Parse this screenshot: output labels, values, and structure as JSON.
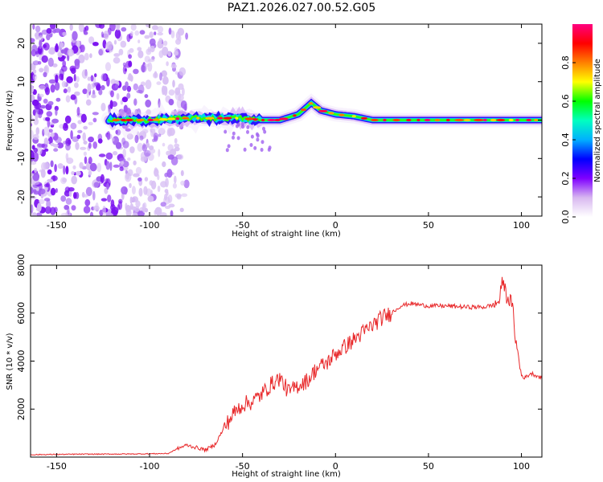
{
  "figure_title": "PAZ1.2026.027.00.52.G05",
  "chart_data": [
    {
      "type": "heatmap",
      "panel": "spectrogram",
      "xlabel": "Height of straight line (km)",
      "ylabel": "Frequency (Hz)",
      "xlim": [
        -164,
        111
      ],
      "ylim": [
        -25,
        25
      ],
      "xticks": [
        -150,
        -100,
        -50,
        0,
        50,
        100
      ],
      "yticks": [
        -20,
        -10,
        0,
        10,
        20
      ],
      "colorbar": {
        "label": "Normalized spectral amplitude",
        "range": [
          0,
          1
        ],
        "ticks": [
          "0.0",
          "0.2",
          "0.4",
          "0.6",
          "0.8"
        ],
        "colormap": [
          "#ffffff",
          "#d8b8f0",
          "#7f00ff",
          "#0000ff",
          "#00b0ff",
          "#00ffc0",
          "#00ff00",
          "#ffff00",
          "#ff8000",
          "#ff0000",
          "#ff0080"
        ]
      },
      "ridge": {
        "description_points_km_hz": [
          [
            -120,
            0
          ],
          [
            -100,
            0
          ],
          [
            -80,
            0.5
          ],
          [
            -60,
            0.5
          ],
          [
            -50,
            0.5
          ],
          [
            -40,
            0
          ],
          [
            -30,
            0
          ],
          [
            -20,
            1.5
          ],
          [
            -13,
            4.5
          ],
          [
            -8,
            2.5
          ],
          [
            0,
            1.5
          ],
          [
            10,
            1
          ],
          [
            20,
            0
          ],
          [
            50,
            0
          ],
          [
            90,
            0
          ],
          [
            111,
            0
          ]
        ]
      }
    },
    {
      "type": "line",
      "panel": "snr",
      "xlabel": "Height of straight line (km)",
      "ylabel": "SNR (10 * v/v)",
      "xlim": [
        -164,
        111
      ],
      "ylim": [
        0,
        8000
      ],
      "xticks": [
        -150,
        -100,
        -50,
        0,
        50,
        100
      ],
      "yticks": [
        2000,
        4000,
        6000,
        8000
      ],
      "series": [
        {
          "name": "SNR",
          "color": "#e8282a",
          "x": [
            -164,
            -140,
            -110,
            -90,
            -85,
            -80,
            -75,
            -70,
            -65,
            -60,
            -55,
            -50,
            -45,
            -40,
            -35,
            -30,
            -25,
            -20,
            -15,
            -10,
            -5,
            0,
            5,
            10,
            15,
            20,
            25,
            30,
            35,
            40,
            45,
            50,
            60,
            70,
            80,
            85,
            88,
            90,
            92,
            95,
            97,
            100,
            102,
            105,
            108,
            111
          ],
          "y": [
            100,
            120,
            130,
            150,
            350,
            500,
            400,
            300,
            500,
            1200,
            1800,
            2200,
            2300,
            2600,
            3000,
            3300,
            2700,
            3000,
            3200,
            3700,
            3900,
            4300,
            4600,
            4900,
            5200,
            5500,
            5800,
            6000,
            6300,
            6400,
            6350,
            6300,
            6300,
            6250,
            6250,
            6350,
            6500,
            7400,
            6700,
            6400,
            4800,
            3400,
            3300,
            3500,
            3400,
            3300
          ]
        }
      ]
    }
  ]
}
